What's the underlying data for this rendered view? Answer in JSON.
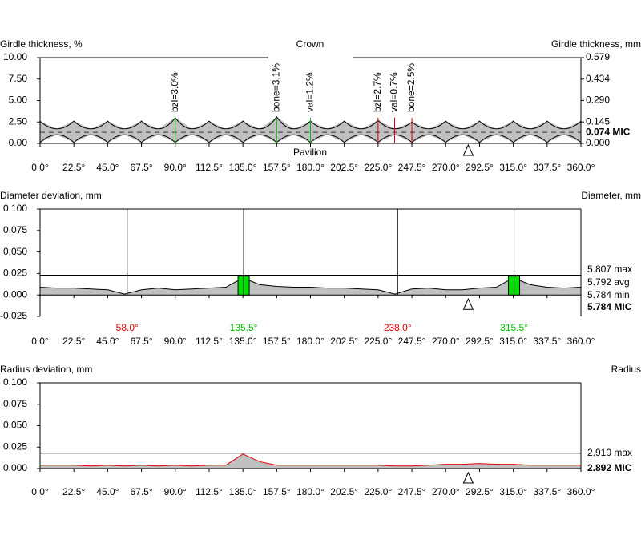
{
  "chart_data": [
    {
      "type": "band",
      "title": "Crown",
      "subtitle": "Pavilion",
      "y_label": "Girdle thickness, %",
      "y2_label": "Girdle thickness, mm",
      "xlim": [
        0,
        360
      ],
      "ylim": [
        0,
        10
      ],
      "y2lim": [
        0,
        0.579
      ],
      "xticks": [
        {
          "value": 0,
          "label": "0.0°"
        },
        {
          "value": 22.5,
          "label": "22.5°"
        },
        {
          "value": 45,
          "label": "45.0°"
        },
        {
          "value": 67.5,
          "label": "67.5°"
        },
        {
          "value": 90,
          "label": "90.0°"
        },
        {
          "value": 112.5,
          "label": "112.5°"
        },
        {
          "value": 135,
          "label": "135.0°"
        },
        {
          "value": 157.5,
          "label": "157.5°"
        },
        {
          "value": 180,
          "label": "180.0°"
        },
        {
          "value": 202.5,
          "label": "202.5°"
        },
        {
          "value": 225,
          "label": "225.0°"
        },
        {
          "value": 247.5,
          "label": "247.5°"
        },
        {
          "value": 270,
          "label": "270.0°"
        },
        {
          "value": 292.5,
          "label": "292.5°"
        },
        {
          "value": 315,
          "label": "315.0°"
        },
        {
          "value": 337.5,
          "label": "337.5°"
        },
        {
          "value": 360,
          "label": "360.0°"
        }
      ],
      "yticks": [
        {
          "value": 10,
          "label": "10.00"
        },
        {
          "value": 7.5,
          "label": "7.50"
        },
        {
          "value": 5,
          "label": "5.00"
        },
        {
          "value": 2.5,
          "label": "2.50"
        },
        {
          "value": 0,
          "label": "0.00"
        }
      ],
      "y2ticks": [
        0.579,
        0.434,
        {
          "value": 0.29,
          "label": "0.290"
        },
        0.145,
        {
          "value": 0,
          "label": "0.000"
        }
      ],
      "mic": {
        "value": 0.074,
        "label": "0.074 MIC"
      },
      "x": [
        0,
        11.25,
        22.5,
        33.75,
        45,
        56.25,
        67.5,
        78.75,
        90,
        101.25,
        112.5,
        123.75,
        135,
        146.25,
        157.5,
        168.75,
        180,
        191.25,
        202.5,
        213.75,
        225,
        236.25,
        247.5,
        258.75,
        270,
        281.25,
        292.5,
        303.75,
        315,
        326.25,
        337.5,
        348.75,
        360
      ],
      "upper": [
        2.6,
        1.7,
        2.6,
        1.7,
        2.6,
        1.7,
        2.6,
        1.7,
        3.0,
        1.7,
        2.6,
        1.7,
        2.6,
        1.7,
        3.1,
        1.7,
        2.6,
        1.7,
        2.6,
        1.7,
        2.7,
        1.7,
        2.5,
        1.7,
        2.6,
        1.7,
        2.6,
        1.7,
        2.6,
        1.7,
        2.6,
        1.7,
        2.6
      ],
      "lower": [
        0.1,
        1.0,
        0.1,
        1.0,
        0.1,
        1.0,
        0.1,
        1.0,
        0.1,
        1.0,
        0.1,
        1.0,
        0.1,
        1.0,
        0.1,
        1.0,
        0.1,
        1.0,
        0.1,
        1.0,
        0.1,
        1.0,
        0.1,
        1.0,
        0.1,
        1.0,
        0.1,
        1.0,
        0.1,
        1.0,
        0.1,
        1.0,
        0.1
      ],
      "fill": "#c0c0c0",
      "annotations": [
        {
          "text": "bzl=3.0%",
          "x": 90,
          "color": "#00c000"
        },
        {
          "text": "bone=3.1%",
          "x": 157.5,
          "color": "#00c000"
        },
        {
          "text": "val=1.2%",
          "x": 180,
          "color": "#00c000"
        },
        {
          "text": "bzl=2.7%",
          "x": 225,
          "color": "#e00000"
        },
        {
          "text": "val=0.7%",
          "x": 236,
          "color": "#e00000"
        },
        {
          "text": "bone=2.5%",
          "x": 247.5,
          "color": "#e00000"
        }
      ],
      "marker_x": 285
    },
    {
      "type": "area",
      "y_label": "Diameter deviation, mm",
      "y2_label": "Diameter, mm",
      "xlim": [
        0,
        360
      ],
      "ylim": [
        -0.025,
        0.1
      ],
      "xticks": [
        {
          "value": 0,
          "label": "0.0°"
        },
        {
          "value": 22.5,
          "label": "22.5°"
        },
        {
          "value": 45,
          "label": "45.0°"
        },
        {
          "value": 67.5,
          "label": "67.5°"
        },
        {
          "value": 90,
          "label": "90.0°"
        },
        {
          "value": 112.5,
          "label": "112.5°"
        },
        {
          "value": 135,
          "label": "135.0°"
        },
        {
          "value": 157.5,
          "label": "157.5°"
        },
        {
          "value": 180,
          "label": "180.0°"
        },
        {
          "value": 202.5,
          "label": "202.5°"
        },
        {
          "value": 225,
          "label": "225.0°"
        },
        {
          "value": 247.5,
          "label": "247.5°"
        },
        {
          "value": 270,
          "label": "270.0°"
        },
        {
          "value": 292.5,
          "label": "292.5°"
        },
        {
          "value": 315,
          "label": "315.0°"
        },
        {
          "value": 337.5,
          "label": "337.5°"
        },
        {
          "value": 360,
          "label": "360.0°"
        }
      ],
      "yticks": [
        {
          "value": 0.1,
          "label": "0.100"
        },
        {
          "value": 0.075,
          "label": "0.075"
        },
        {
          "value": 0.05,
          "label": "0.050"
        },
        {
          "value": 0.025,
          "label": "0.025"
        },
        {
          "value": 0,
          "label": "0.000"
        },
        {
          "value": -0.025,
          "label": "-0.025"
        }
      ],
      "right_labels": [
        "5.807 max",
        "5.792 avg",
        "5.784 min"
      ],
      "mic_label": "5.784 MIC",
      "max_deviation": 0.023,
      "x": [
        0,
        11.25,
        22.5,
        33.75,
        45,
        56.25,
        67.5,
        78.75,
        90,
        101.25,
        112.5,
        123.75,
        135,
        146.25,
        157.5,
        168.75,
        180,
        191.25,
        202.5,
        213.75,
        225,
        236.25,
        247.5,
        258.75,
        270,
        281.25,
        292.5,
        303.75,
        315,
        326.25,
        337.5,
        348.75,
        360
      ],
      "values": [
        0.009,
        0.008,
        0.008,
        0.007,
        0.006,
        0.001,
        0.006,
        0.008,
        0.006,
        0.007,
        0.008,
        0.009,
        0.02,
        0.012,
        0.01,
        0.009,
        0.009,
        0.008,
        0.008,
        0.007,
        0.006,
        0.001,
        0.007,
        0.008,
        0.006,
        0.006,
        0.008,
        0.009,
        0.02,
        0.012,
        0.009,
        0.008,
        0.009
      ],
      "fill": "#c0c0c0",
      "line_color": "#000000",
      "markers": [
        {
          "x": 58,
          "label": "58.0°",
          "color": "#e00000"
        },
        {
          "x": 135.5,
          "label": "135.5°",
          "color": "#00c000",
          "bar": 0.022
        },
        {
          "x": 238,
          "label": "238.0°",
          "color": "#e00000"
        },
        {
          "x": 315.5,
          "label": "315.5°",
          "color": "#00c000",
          "bar": 0.022
        }
      ],
      "bar_color": "#00e000",
      "marker_x": 285
    },
    {
      "type": "area",
      "y_label": "Radius deviation, mm",
      "y2_label": "Radius",
      "xlim": [
        0,
        360
      ],
      "ylim": [
        0,
        0.1
      ],
      "xticks": [
        {
          "value": 0,
          "label": "0.0°"
        },
        {
          "value": 22.5,
          "label": "22.5°"
        },
        {
          "value": 45,
          "label": "45.0°"
        },
        {
          "value": 67.5,
          "label": "67.5°"
        },
        {
          "value": 90,
          "label": "90.0°"
        },
        {
          "value": 112.5,
          "label": "112.5°"
        },
        {
          "value": 135,
          "label": "135.0°"
        },
        {
          "value": 157.5,
          "label": "157.5°"
        },
        {
          "value": 180,
          "label": "180.0°"
        },
        {
          "value": 202.5,
          "label": "202.5°"
        },
        {
          "value": 225,
          "label": "225.0°"
        },
        {
          "value": 247.5,
          "label": "247.5°"
        },
        {
          "value": 270,
          "label": "270.0°"
        },
        {
          "value": 292.5,
          "label": "292.5°"
        },
        {
          "value": 315,
          "label": "315.0°"
        },
        {
          "value": 337.5,
          "label": "337.5°"
        },
        {
          "value": 360,
          "label": "360.0°"
        }
      ],
      "yticks": [
        {
          "value": 0.1,
          "label": "0.100"
        },
        {
          "value": 0.075,
          "label": "0.075"
        },
        {
          "value": 0.05,
          "label": "0.050"
        },
        {
          "value": 0.025,
          "label": "0.025"
        },
        {
          "value": 0,
          "label": "0.000"
        }
      ],
      "right_labels": [
        "2.910 max"
      ],
      "mic_label": "2.892 MIC",
      "max_deviation": 0.018,
      "x": [
        0,
        11.25,
        22.5,
        33.75,
        45,
        56.25,
        67.5,
        78.75,
        90,
        101.25,
        112.5,
        123.75,
        135,
        146.25,
        157.5,
        168.75,
        180,
        191.25,
        202.5,
        213.75,
        225,
        236.25,
        247.5,
        258.75,
        270,
        281.25,
        292.5,
        303.75,
        315,
        326.25,
        337.5,
        348.75,
        360
      ],
      "values": [
        0.004,
        0.004,
        0.004,
        0.003,
        0.004,
        0.003,
        0.004,
        0.003,
        0.004,
        0.003,
        0.004,
        0.004,
        0.017,
        0.008,
        0.004,
        0.004,
        0.004,
        0.004,
        0.004,
        0.004,
        0.004,
        0.003,
        0.003,
        0.004,
        0.005,
        0.005,
        0.006,
        0.005,
        0.005,
        0.004,
        0.004,
        0.004,
        0.004
      ],
      "fill": "#c0c0c0",
      "line_color": "#e00000",
      "marker_x": 285
    }
  ]
}
